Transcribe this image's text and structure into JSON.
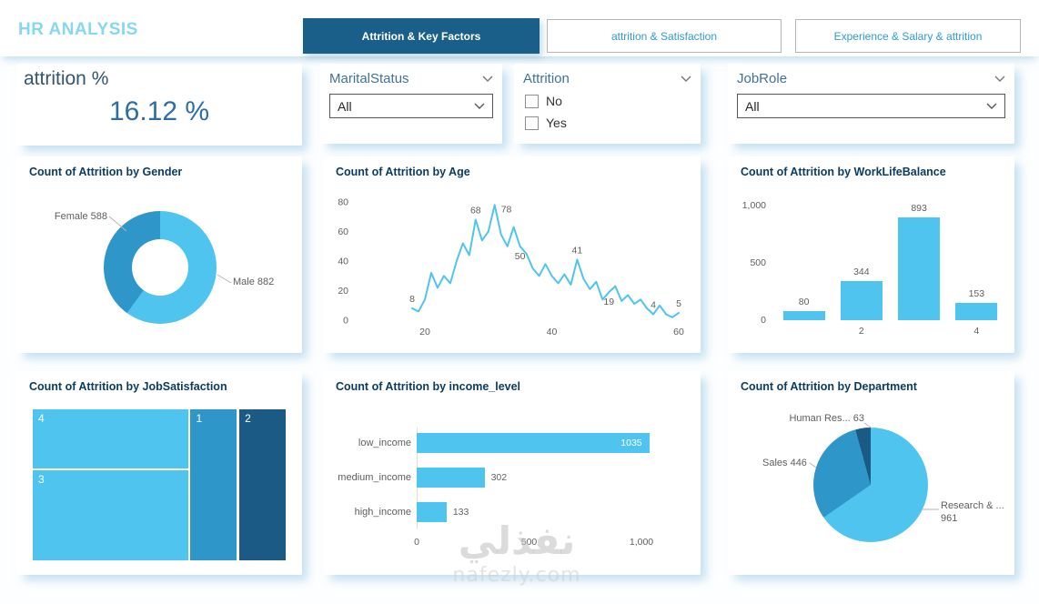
{
  "colors": {
    "accent_light": "#4FC4EF",
    "accent_mid": "#2E96C8",
    "accent_dark": "#1B5A84",
    "tab_active_bg": "#1A5F8A",
    "tab_inactive_text": "#2E9BD6",
    "header_title": "#87D7F3",
    "card_title": "#0B3C61",
    "slicer_header": "#3F7396",
    "kpi_label": "#33566E",
    "kpi_value": "#2E6DA4",
    "axis_text": "#605E5C"
  },
  "header": {
    "title": "HR ANALYSIS",
    "tabs": [
      {
        "label": "Attrition & Key Factors",
        "active": true
      },
      {
        "label": "attrition & Satisfaction",
        "active": false
      },
      {
        "label": "Experience & Salary & attrition",
        "active": false
      }
    ]
  },
  "filters": {
    "kpi": {
      "label": "attrition %",
      "value": "16.12 %"
    },
    "marital": {
      "label": "MaritalStatus",
      "value": "All"
    },
    "attrition": {
      "label": "Attrition",
      "options": [
        "No",
        "Yes"
      ]
    },
    "jobrole": {
      "label": "JobRole",
      "value": "All"
    }
  },
  "watermark": {
    "line1": "نفذلي",
    "line2": "nafezly.com"
  },
  "chart_data": [
    {
      "type": "pie",
      "variant": "donut",
      "title": "Count of Attrition by Gender",
      "slices": [
        {
          "label": "Male",
          "value": 882,
          "label_text": "Male 882",
          "color": "accent_light"
        },
        {
          "label": "Female",
          "value": 588,
          "label_text": "Female 588",
          "color": "accent_mid"
        }
      ]
    },
    {
      "type": "line",
      "title": "Count of Attrition by Age",
      "xlabel": "Age",
      "xlim": [
        18,
        61
      ],
      "ylim": [
        0,
        85
      ],
      "xticks": [
        20,
        40,
        60
      ],
      "yticks": [
        0,
        20,
        40,
        60,
        80
      ],
      "x": [
        18,
        19,
        20,
        21,
        22,
        23,
        24,
        25,
        26,
        27,
        28,
        29,
        30,
        31,
        32,
        33,
        34,
        35,
        36,
        37,
        38,
        39,
        40,
        41,
        42,
        43,
        44,
        45,
        46,
        47,
        48,
        49,
        50,
        51,
        52,
        53,
        54,
        55,
        56,
        57,
        58,
        59,
        60
      ],
      "values": [
        8,
        6,
        14,
        32,
        22,
        30,
        25,
        40,
        52,
        44,
        68,
        54,
        60,
        78,
        58,
        50,
        63,
        50,
        45,
        35,
        30,
        38,
        30,
        25,
        31,
        24,
        41,
        28,
        21,
        26,
        14,
        19,
        23,
        13,
        17,
        11,
        14,
        8,
        4,
        10,
        4,
        2,
        5
      ],
      "point_labels": [
        {
          "x": 18,
          "v": 8,
          "pos": "above"
        },
        {
          "x": 28,
          "v": 68,
          "pos": "above"
        },
        {
          "x": 31,
          "v": 78,
          "pos": "right"
        },
        {
          "x": 35,
          "v": 50,
          "pos": "below"
        },
        {
          "x": 44,
          "v": 41,
          "pos": "above"
        },
        {
          "x": 49,
          "v": 19,
          "pos": "below"
        },
        {
          "x": 56,
          "v": 4,
          "pos": "above"
        },
        {
          "x": 60,
          "v": 5,
          "pos": "above"
        }
      ]
    },
    {
      "type": "bar",
      "title": "Count of Attrition by WorkLifeBalance",
      "categories": [
        1,
        2,
        3,
        4
      ],
      "values": [
        80,
        344,
        893,
        153
      ],
      "xticks": [
        {
          "index": 1,
          "text": "2"
        },
        {
          "index": 3,
          "text": "4"
        }
      ],
      "yticks": [
        {
          "value": 0,
          "text": "0"
        },
        {
          "value": 500,
          "text": "500"
        },
        {
          "value": 1000,
          "text": "1,000"
        }
      ],
      "ymax": 1000
    },
    {
      "type": "treemap",
      "title": "Count of Attrition by JobSatisfaction",
      "labels": [
        "4",
        "3",
        "1",
        "2"
      ],
      "cells": [
        {
          "label": "4",
          "x": 0,
          "y": 0,
          "w": 61.4,
          "h": 39.4,
          "color": "accent_light"
        },
        {
          "label": "3",
          "x": 0,
          "y": 40.6,
          "w": 61.4,
          "h": 59.4,
          "color": "accent_light"
        },
        {
          "label": "1",
          "x": 62.4,
          "y": 0,
          "w": 18.3,
          "h": 100,
          "color": "accent_mid"
        },
        {
          "label": "2",
          "x": 81.7,
          "y": 0,
          "w": 18.3,
          "h": 100,
          "color": "accent_dark"
        }
      ]
    },
    {
      "type": "bar",
      "orientation": "horizontal",
      "title": "Count of Attrition by income_level",
      "categories": [
        "low_income",
        "medium_income",
        "high_income"
      ],
      "values": [
        1035,
        302,
        133
      ],
      "xticks": [
        {
          "value": 0,
          "text": "0"
        },
        {
          "value": 500,
          "text": "500"
        },
        {
          "value": 1000,
          "text": "1,000"
        }
      ],
      "xmax": 1100
    },
    {
      "type": "pie",
      "title": "Count of Attrition by Department",
      "slices": [
        {
          "label": "Research & Development",
          "value": 961,
          "label_text": "Research & ...",
          "value_text": "961",
          "color": "accent_light"
        },
        {
          "label": "Sales",
          "value": 446,
          "label_text": "Sales 446",
          "color": "accent_mid"
        },
        {
          "label": "Human Resources",
          "value": 63,
          "label_text": "Human Res... 63",
          "color": "accent_dark"
        }
      ]
    }
  ]
}
